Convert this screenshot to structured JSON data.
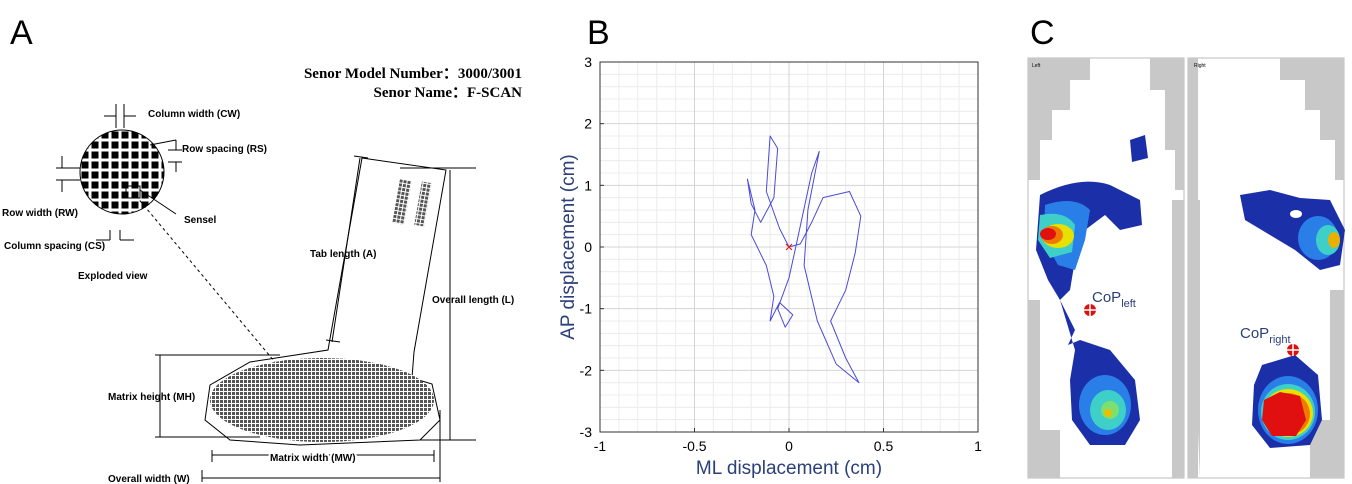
{
  "panel_a": {
    "label": "A",
    "model_number": "Senor Model Number：3000/3001",
    "sensor_name": "Senor Name：F-SCAN",
    "column_width": "Column width (CW)",
    "row_spacing": "Row spacing (RS)",
    "row_width": "Row width (RW)",
    "sensel": "Sensel",
    "column_spacing": "Column spacing (CS)",
    "exploded_view": "Exploded view",
    "tab_length": "Tab length (A)",
    "overall_length": "Overall length (L)",
    "matrix_height": "Matrix height (MH)",
    "matrix_width": "Matrix width (MW)",
    "overall_width": "Overall width (W)"
  },
  "chart_data": {
    "type": "line",
    "panel_label": "B",
    "xlabel": "ML displacement (cm)",
    "ylabel": "AP displacement (cm)",
    "xlim": [
      -1,
      1
    ],
    "ylim": [
      -3,
      3
    ],
    "xticks": [
      -1,
      -0.5,
      0,
      0.5,
      1
    ],
    "yticks": [
      -3,
      -2,
      -1,
      0,
      1,
      2,
      3
    ],
    "grid": true,
    "series": [
      {
        "color": "#4a4ad8",
        "x": [
          0,
          -0.05,
          -0.12,
          -0.1,
          -0.06,
          -0.08,
          -0.15,
          -0.2,
          -0.22,
          -0.18,
          -0.2,
          -0.12,
          -0.08,
          -0.1,
          -0.05,
          0.02,
          -0.02,
          -0.06,
          0,
          0.05,
          0.12,
          0.16,
          0.1,
          0.08,
          0.15,
          0.25,
          0.37,
          0.3,
          0.22,
          0.3,
          0.35,
          0.38,
          0.32,
          0.18,
          0.12,
          0.06,
          0
        ],
        "values": [
          0,
          0.3,
          0.9,
          1.8,
          1.6,
          0.8,
          0.4,
          0.7,
          1.1,
          0.6,
          0.2,
          -0.3,
          -0.8,
          -1.2,
          -0.9,
          -1.1,
          -1.3,
          -1,
          -0.5,
          0.2,
          1.2,
          1.55,
          0.6,
          -0.3,
          -1.2,
          -1.9,
          -2.2,
          -1.8,
          -1.2,
          -0.7,
          -0.1,
          0.5,
          0.9,
          0.8,
          0.4,
          0.05,
          0
        ]
      },
      {
        "color": "#e02020",
        "marker": "x",
        "x": [
          0
        ],
        "values": [
          0
        ]
      }
    ]
  },
  "panel_c": {
    "label": "C",
    "left_label": "Left",
    "right_label": "Right",
    "cop_left": {
      "base": "CoP",
      "sub": "left"
    },
    "cop_right": {
      "base": "CoP",
      "sub": "right"
    }
  }
}
